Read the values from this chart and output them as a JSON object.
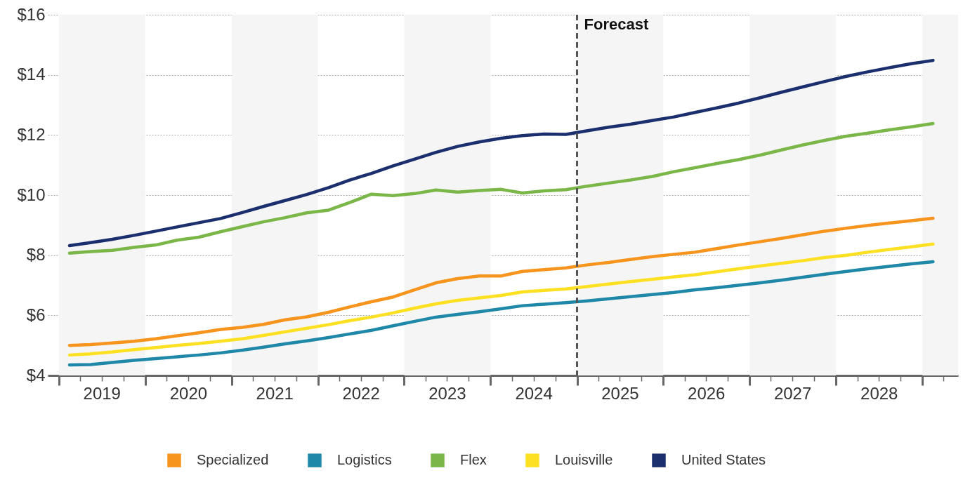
{
  "chart_data": {
    "type": "line",
    "x": [
      "2019-02-15",
      "2019-05-15",
      "2019-08-15",
      "2019-11-15",
      "2020-02-15",
      "2020-05-15",
      "2020-08-15",
      "2020-11-15",
      "2021-02-15",
      "2021-05-15",
      "2021-08-15",
      "2021-11-15",
      "2022-02-15",
      "2022-05-15",
      "2022-08-15",
      "2022-11-15",
      "2023-02-15",
      "2023-05-15",
      "2023-08-15",
      "2023-11-15",
      "2024-02-15",
      "2024-05-15",
      "2024-08-15",
      "2024-11-15",
      "2025-02-15",
      "2025-05-15",
      "2025-08-15",
      "2025-11-15",
      "2026-02-15",
      "2026-05-15",
      "2026-08-15",
      "2026-11-15",
      "2027-02-15",
      "2027-05-15",
      "2027-08-15",
      "2027-11-15",
      "2028-02-15",
      "2028-05-15",
      "2028-08-15",
      "2028-11-15",
      "2029-02-15"
    ],
    "series": [
      {
        "name": "Specialized",
        "color": "#f7941d",
        "values": [
          5.0,
          5.03,
          5.08,
          5.14,
          5.22,
          5.32,
          5.42,
          5.53,
          5.6,
          5.7,
          5.85,
          5.95,
          6.1,
          6.28,
          6.45,
          6.61,
          6.85,
          7.08,
          7.22,
          7.31,
          7.31,
          7.46,
          7.52,
          7.58,
          7.68,
          7.76,
          7.86,
          7.95,
          8.03,
          8.1,
          8.22,
          8.34,
          8.45,
          8.56,
          8.68,
          8.8,
          8.9,
          8.99,
          9.07,
          9.15,
          9.23
        ]
      },
      {
        "name": "Logistics",
        "color": "#1f88a8",
        "values": [
          4.35,
          4.36,
          4.43,
          4.5,
          4.56,
          4.62,
          4.68,
          4.75,
          4.84,
          4.94,
          5.05,
          5.15,
          5.26,
          5.38,
          5.5,
          5.65,
          5.8,
          5.94,
          6.03,
          6.12,
          6.22,
          6.32,
          6.37,
          6.42,
          6.48,
          6.55,
          6.62,
          6.69,
          6.76,
          6.85,
          6.92,
          7.0,
          7.08,
          7.17,
          7.27,
          7.37,
          7.46,
          7.55,
          7.63,
          7.71,
          7.78
        ]
      },
      {
        "name": "Flex",
        "color": "#7ab648",
        "values": [
          8.07,
          8.12,
          8.16,
          8.26,
          8.34,
          8.5,
          8.6,
          8.78,
          8.95,
          9.11,
          9.25,
          9.41,
          9.5,
          9.75,
          10.03,
          9.98,
          10.05,
          10.17,
          10.1,
          10.15,
          10.19,
          10.07,
          10.14,
          10.18,
          10.3,
          10.4,
          10.5,
          10.62,
          10.78,
          10.91,
          11.05,
          11.18,
          11.33,
          11.5,
          11.67,
          11.82,
          11.96,
          12.06,
          12.17,
          12.27,
          12.38
        ]
      },
      {
        "name": "Louisville",
        "color": "#fde021",
        "values": [
          4.68,
          4.72,
          4.78,
          4.86,
          4.93,
          5.0,
          5.06,
          5.14,
          5.22,
          5.33,
          5.45,
          5.57,
          5.69,
          5.82,
          5.94,
          6.08,
          6.24,
          6.38,
          6.5,
          6.58,
          6.66,
          6.78,
          6.83,
          6.88,
          6.96,
          7.04,
          7.12,
          7.2,
          7.28,
          7.35,
          7.45,
          7.55,
          7.64,
          7.73,
          7.82,
          7.92,
          8.0,
          8.1,
          8.19,
          8.28,
          8.37
        ]
      },
      {
        "name": "United States",
        "color": "#1b2f6e",
        "values": [
          8.32,
          8.42,
          8.53,
          8.66,
          8.8,
          8.94,
          9.08,
          9.22,
          9.42,
          9.62,
          9.82,
          10.02,
          10.25,
          10.5,
          10.72,
          10.97,
          11.2,
          11.42,
          11.62,
          11.77,
          11.89,
          11.98,
          12.03,
          12.02,
          12.14,
          12.26,
          12.36,
          12.48,
          12.6,
          12.75,
          12.9,
          13.06,
          13.24,
          13.42,
          13.6,
          13.78,
          13.95,
          14.1,
          14.24,
          14.37,
          14.48
        ]
      }
    ],
    "xlim": [
      "2018-11-15",
      "2029-06-01"
    ],
    "xticks": [
      {
        "value": "2019-01-01",
        "label": null
      },
      {
        "value": "2019-04-01",
        "label": null
      },
      {
        "value": "2019-07-01",
        "label": "2019"
      },
      {
        "value": "2019-10-01",
        "label": null
      },
      {
        "value": "2020-01-01",
        "label": null
      },
      {
        "value": "2020-04-01",
        "label": null
      },
      {
        "value": "2020-07-01",
        "label": "2020"
      },
      {
        "value": "2020-10-01",
        "label": null
      },
      {
        "value": "2021-01-01",
        "label": null
      },
      {
        "value": "2021-04-01",
        "label": null
      },
      {
        "value": "2021-07-01",
        "label": "2021"
      },
      {
        "value": "2021-10-01",
        "label": null
      },
      {
        "value": "2022-01-01",
        "label": null
      },
      {
        "value": "2022-04-01",
        "label": null
      },
      {
        "value": "2022-07-01",
        "label": "2022"
      },
      {
        "value": "2022-10-01",
        "label": null
      },
      {
        "value": "2023-01-01",
        "label": null
      },
      {
        "value": "2023-04-01",
        "label": null
      },
      {
        "value": "2023-07-01",
        "label": "2023"
      },
      {
        "value": "2023-10-01",
        "label": null
      },
      {
        "value": "2024-01-01",
        "label": null
      },
      {
        "value": "2024-04-01",
        "label": null
      },
      {
        "value": "2024-07-01",
        "label": "2024"
      },
      {
        "value": "2024-10-01",
        "label": null
      },
      {
        "value": "2025-01-01",
        "label": null
      },
      {
        "value": "2025-04-01",
        "label": null
      },
      {
        "value": "2025-07-01",
        "label": "2025"
      },
      {
        "value": "2025-10-01",
        "label": null
      },
      {
        "value": "2026-01-01",
        "label": null
      },
      {
        "value": "2026-04-01",
        "label": null
      },
      {
        "value": "2026-07-01",
        "label": "2026"
      },
      {
        "value": "2026-10-01",
        "label": null
      },
      {
        "value": "2027-01-01",
        "label": null
      },
      {
        "value": "2027-04-01",
        "label": null
      },
      {
        "value": "2027-07-01",
        "label": "2027"
      },
      {
        "value": "2027-10-01",
        "label": null
      },
      {
        "value": "2028-01-01",
        "label": null
      },
      {
        "value": "2028-04-01",
        "label": null
      },
      {
        "value": "2028-07-01",
        "label": "2028"
      },
      {
        "value": "2028-10-01",
        "label": null
      },
      {
        "value": "2029-01-01",
        "label": null
      },
      {
        "value": "2029-04-01",
        "label": null
      }
    ],
    "ylim": [
      4,
      16
    ],
    "yticks": [
      {
        "value": 4,
        "label": "$4"
      },
      {
        "value": 6,
        "label": "$6"
      },
      {
        "value": 8,
        "label": "$8"
      },
      {
        "value": 10,
        "label": "$10"
      },
      {
        "value": 12,
        "label": "$12"
      },
      {
        "value": 14,
        "label": "$14"
      },
      {
        "value": 16,
        "label": "$16"
      }
    ],
    "grid": "y",
    "legend": "bottom",
    "line_style": "solid",
    "marker": "none",
    "ref_lines": [
      {
        "axis": "x",
        "value": "2025-01-01",
        "label": "Forecast",
        "color": "#555555",
        "line_style": "dashed"
      }
    ],
    "bands": [
      {
        "axis": "x",
        "from": "2019-01-01",
        "to": "2020-01-01",
        "color": "#f5f5f5"
      },
      {
        "axis": "x",
        "from": "2021-01-01",
        "to": "2022-01-01",
        "color": "#f5f5f5"
      },
      {
        "axis": "x",
        "from": "2023-01-01",
        "to": "2024-01-01",
        "color": "#f5f5f5"
      },
      {
        "axis": "x",
        "from": "2025-01-01",
        "to": "2026-01-01",
        "color": "#f5f5f5"
      },
      {
        "axis": "x",
        "from": "2027-01-01",
        "to": "2028-01-01",
        "color": "#f5f5f5"
      },
      {
        "axis": "x",
        "from": "2029-01-01",
        "to": "2029-06-01",
        "color": "#f5f5f5"
      }
    ]
  }
}
